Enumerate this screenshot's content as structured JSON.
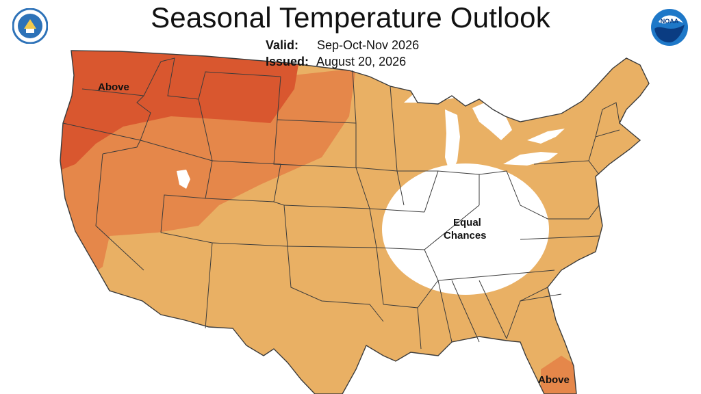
{
  "title": "Seasonal Temperature Outlook",
  "valid": {
    "label": "Valid:",
    "value": "Sep-Oct-Nov 2026"
  },
  "issued": {
    "label": "Issued:",
    "value": "August 20, 2026"
  },
  "logos": {
    "left": "department-of-commerce-seal",
    "right": "noaa-logo"
  },
  "regions": [
    {
      "name": "above-northwest",
      "label": "Above",
      "color": "#d9572f"
    },
    {
      "name": "above-west-mid",
      "label": "",
      "color": "#e5874a"
    },
    {
      "name": "above-florida",
      "label": "Above",
      "color": "#e5874a"
    },
    {
      "name": "equal-chances",
      "label": "Equal\nChances",
      "color": "#ffffff"
    }
  ],
  "labels": {
    "above_nw": "Above",
    "equal_1": "Equal",
    "equal_2": "Chances",
    "above_fl": "Above"
  },
  "colors": {
    "base": "#e9b064",
    "mid": "#e5874a",
    "high": "#d9572f",
    "border": "#3b3b3b",
    "water": "#ffffff"
  }
}
